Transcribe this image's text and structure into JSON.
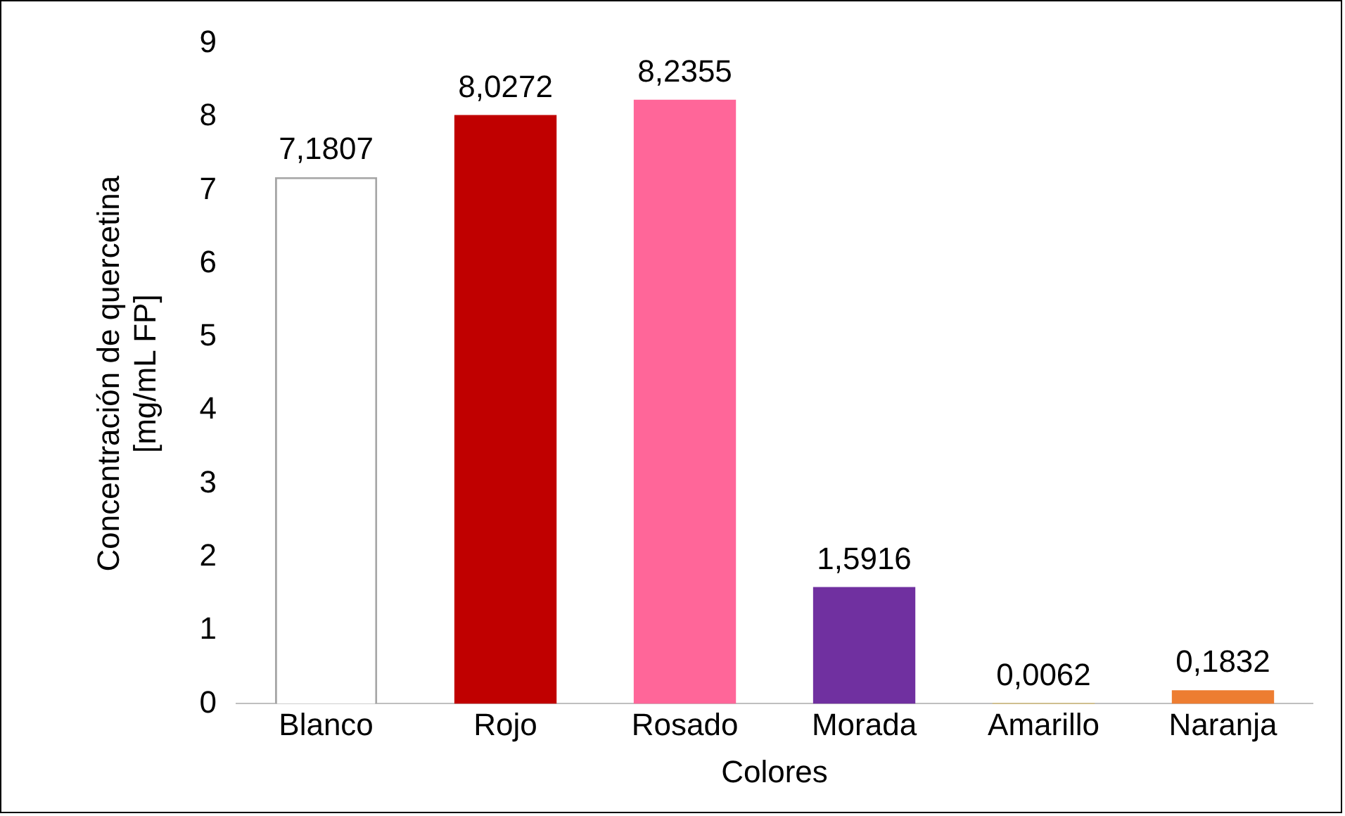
{
  "chart_data": {
    "type": "bar",
    "xlabel": "Colores",
    "ylabel": "Concentración de quercetina\n[mg/mL FP]",
    "categories": [
      "Blanco",
      "Rojo",
      "Rosado",
      "Morada",
      "Amarillo",
      "Naranja"
    ],
    "values": [
      7.1807,
      8.0272,
      8.2355,
      1.5916,
      0.0062,
      0.1832
    ],
    "colors": [
      "#ffffff",
      "#c00000",
      "#ff6699",
      "#7030a0",
      "#ffc000",
      "#ed7d31"
    ],
    "value_labels": [
      "7,1807",
      "8,0272",
      "8,2355",
      "1,5916",
      "0,0062",
      "0,1832"
    ],
    "ylim": [
      0,
      9
    ],
    "yticks": [
      0,
      1,
      2,
      3,
      4,
      5,
      6,
      7,
      8,
      9
    ],
    "grid": false,
    "legend": false
  }
}
